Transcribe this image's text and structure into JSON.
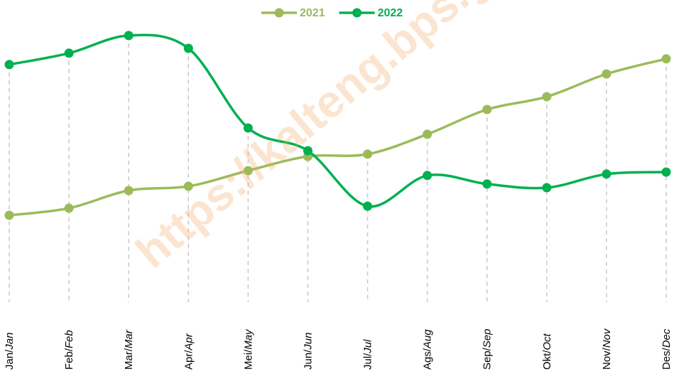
{
  "chart_data": {
    "type": "line",
    "categories": [
      "Jan/Jan",
      "Feb/Feb",
      "Mar/Mar",
      "Apr/Apr",
      "Mei/May",
      "Jun/Jun",
      "Jul/Jul",
      "Ags/Aug",
      "Sep/Sep",
      "Okt/Oct",
      "Nov/Nov",
      "Des/Dec"
    ],
    "series": [
      {
        "name": "2021",
        "color": "#9bbb59",
        "values": [
          29.3,
          31.8,
          38,
          39.5,
          45,
          50,
          50.8,
          57.8,
          66.5,
          71,
          79,
          84.3
        ]
      },
      {
        "name": "2022",
        "color": "#00b050",
        "values": [
          82.3,
          86.3,
          92.5,
          88,
          60,
          52,
          32.5,
          43.3,
          40.3,
          39,
          43.8,
          44.5
        ]
      }
    ],
    "ylim": [
      0,
      100
    ],
    "legend": "top",
    "watermark": "https://kalteng.bps.go.id"
  }
}
